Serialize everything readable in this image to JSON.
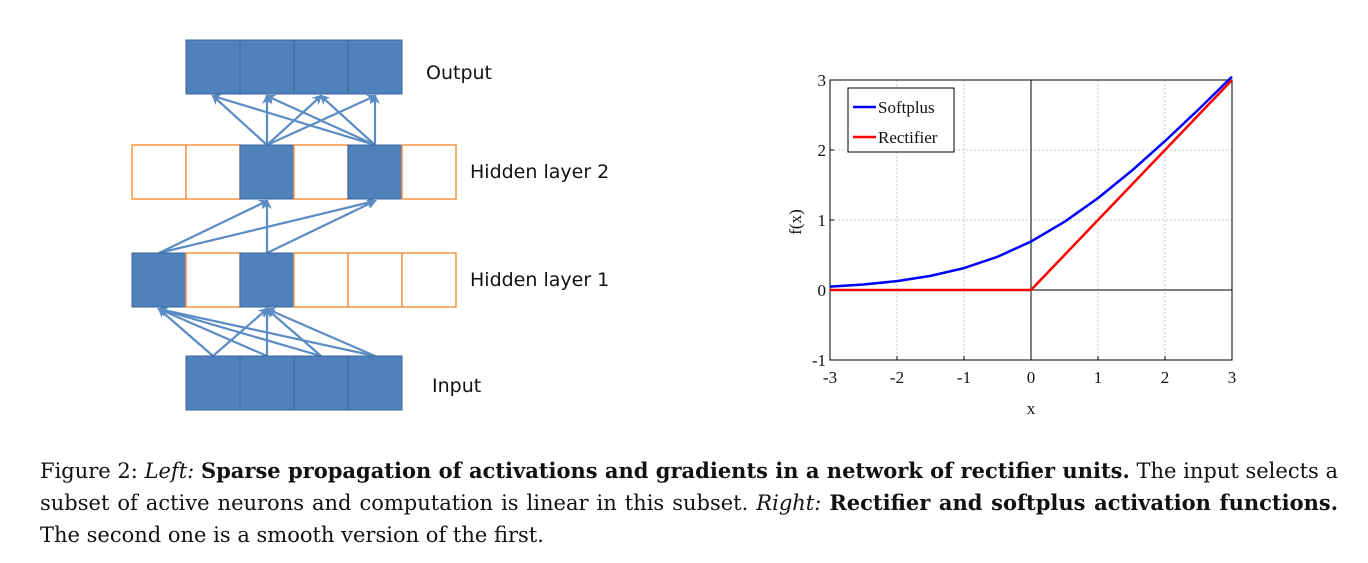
{
  "left_diagram": {
    "layers": [
      {
        "label": "Output",
        "units": 4,
        "active": [
          0,
          1,
          2,
          3
        ]
      },
      {
        "label": "Hidden layer 2",
        "units": 6,
        "active": [
          2,
          4
        ]
      },
      {
        "label": "Hidden layer 1",
        "units": 6,
        "active": [
          0,
          2
        ]
      },
      {
        "label": "Input",
        "units": 4,
        "active": [
          0,
          1,
          2,
          3
        ]
      }
    ],
    "colors": {
      "active_fill": "#4f81bd",
      "active_border": "#3a6699",
      "inactive_border": "#f79646",
      "arrow": "#5b8cc4"
    }
  },
  "chart_data": {
    "type": "line",
    "xlabel": "x",
    "ylabel": "f(x)",
    "xlim": [
      -3,
      3
    ],
    "ylim": [
      -1,
      3
    ],
    "xticks": [
      "-3",
      "-2",
      "-1",
      "0",
      "1",
      "2",
      "3"
    ],
    "yticks": [
      "-1",
      "0",
      "1",
      "2",
      "3"
    ],
    "grid": true,
    "legend_position": "top-left",
    "series": [
      {
        "name": "Softplus",
        "color": "#0000ff",
        "function": "log(1+exp(x))",
        "x": [
          -3,
          -2.5,
          -2,
          -1.5,
          -1,
          -0.5,
          0,
          0.5,
          1,
          1.5,
          2,
          2.5,
          3
        ],
        "y": [
          0.049,
          0.079,
          0.127,
          0.201,
          0.313,
          0.474,
          0.693,
          0.974,
          1.313,
          1.701,
          2.127,
          2.579,
          3.049
        ]
      },
      {
        "name": "Rectifier",
        "color": "#ff0000",
        "function": "max(0,x)",
        "x": [
          -3,
          0,
          3
        ],
        "y": [
          0,
          0,
          3
        ]
      }
    ]
  },
  "caption": {
    "figure_label": "Figure 2:",
    "left_label": "Left:",
    "left_bold": "Sparse propagation of activations and gradients in a network of rectifier units.",
    "left_text": "The input selects a subset of active neurons and computation is linear in this subset.",
    "right_label": "Right:",
    "right_bold": "Rectifier and softplus activation functions.",
    "right_text": "The second one is a smooth version of the first."
  }
}
